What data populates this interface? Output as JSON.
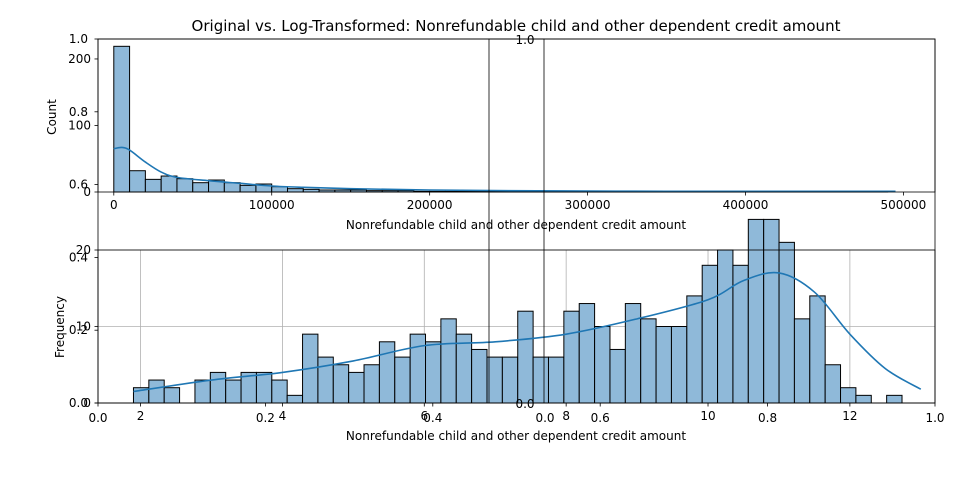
{
  "title": "Original vs. Log-Transformed: Nonrefundable child and other dependent credit amount",
  "colors": {
    "bar_fill": "#8fb9d9",
    "bar_edge": "#000000",
    "kde_line": "#1f77b4",
    "grid": "#b0b0b0"
  },
  "chart_data": [
    {
      "type": "bar",
      "subtype": "histogram_with_kde",
      "xlabel": "Nonrefundable child and other dependent credit amount",
      "ylabel": "Count",
      "xlim": [
        -10000,
        520000
      ],
      "ylim": [
        0,
        230
      ],
      "x_ticks": [
        {
          "value": 0,
          "label": "0"
        },
        {
          "value": 100000,
          "label": "100000"
        },
        {
          "value": 200000,
          "label": "200000"
        },
        {
          "value": 300000,
          "label": "300000"
        },
        {
          "value": 400000,
          "label": "400000"
        },
        {
          "value": 500000,
          "label": "500000"
        }
      ],
      "y_ticks": [
        {
          "value": 0,
          "label": "0"
        },
        {
          "value": 100,
          "label": "100"
        },
        {
          "value": 200,
          "label": "200"
        }
      ],
      "grid": false,
      "bin_start": 0,
      "bin_width": 10000,
      "values": [
        219,
        32,
        19,
        24,
        20,
        14,
        18,
        14,
        10,
        12,
        8,
        5,
        4,
        3,
        3,
        3,
        2,
        2,
        2,
        1,
        1,
        1,
        1,
        1,
        1,
        1,
        1,
        1,
        1,
        1,
        1,
        1,
        1,
        1,
        1,
        1,
        1,
        1,
        1,
        1,
        1,
        1,
        1,
        1,
        1,
        1,
        1,
        1,
        1
      ],
      "kde": {
        "x": [
          0,
          5000,
          10000,
          20000,
          30000,
          40000,
          60000,
          80000,
          100000,
          120000,
          150000,
          200000,
          250000,
          300000,
          350000,
          400000,
          450000,
          495000
        ],
        "y": [
          65,
          67,
          63,
          45,
          30,
          22,
          17,
          13,
          9,
          7,
          5,
          3,
          2,
          1.5,
          1,
          1,
          1,
          1
        ]
      }
    },
    {
      "type": "bar",
      "subtype": "histogram_with_kde",
      "xlabel": "Nonrefundable child and other dependent credit amount",
      "ylabel": "Frequency",
      "xlim": [
        1.4,
        13.2
      ],
      "ylim": [
        0,
        20
      ],
      "x_ticks": [
        {
          "value": 2,
          "label": "2"
        },
        {
          "value": 4,
          "label": "4"
        },
        {
          "value": 6,
          "label": "6"
        },
        {
          "value": 8,
          "label": "8"
        },
        {
          "value": 10,
          "label": "10"
        },
        {
          "value": 12,
          "label": "12"
        }
      ],
      "y_ticks": [
        {
          "value": 0,
          "label": "0"
        },
        {
          "value": 10,
          "label": "10"
        },
        {
          "value": 20,
          "label": "20"
        }
      ],
      "grid": true,
      "bin_start": 1.9,
      "bin_width": 0.2167,
      "values": [
        2,
        3,
        2,
        0,
        3,
        4,
        3,
        4,
        4,
        3,
        1,
        9,
        6,
        5,
        4,
        5,
        8,
        6,
        9,
        8,
        11,
        9,
        7,
        6,
        6,
        12,
        6,
        6,
        12,
        13,
        10,
        7,
        13,
        11,
        10,
        10,
        14,
        18,
        20,
        18,
        24,
        24,
        21,
        11,
        14,
        5,
        2,
        1,
        0,
        1
      ],
      "kde": {
        "x": [
          1.9,
          3,
          4,
          5,
          6,
          7,
          8,
          9,
          10,
          10.5,
          11,
          11.5,
          12,
          12.5,
          13
        ],
        "y": [
          1.5,
          3,
          4,
          5.5,
          7.5,
          8,
          9,
          11,
          13.5,
          16,
          17,
          14.5,
          9,
          4.5,
          1.8
        ]
      }
    }
  ],
  "overlay": {
    "yticks_left": [
      "0.0",
      "0.2",
      "0.4",
      "0.6",
      "0.8",
      "1.0"
    ],
    "xticks_bottom": [
      "0.0",
      "0.2",
      "0.4",
      "0.6",
      "0.8",
      "1.0"
    ],
    "inner_yticks": [
      "0.0",
      "1.0"
    ],
    "inner_xticks": [
      "0.0",
      "0.0"
    ]
  }
}
